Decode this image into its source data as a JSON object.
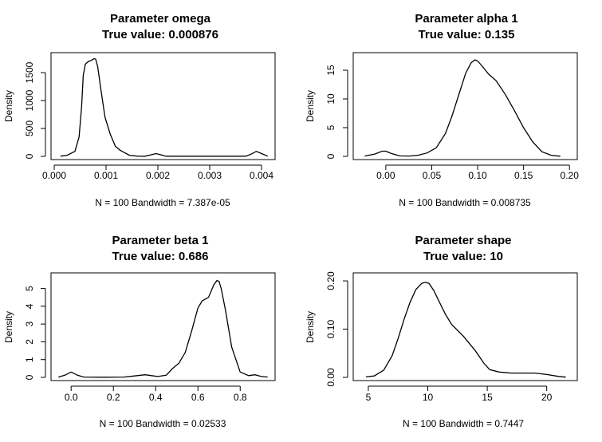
{
  "chart_data": [
    {
      "type": "line",
      "title": "Parameter omega",
      "subtitle": "True value:  0.000876",
      "xlabel": "N = 100   Bandwidth = 7.387e-05",
      "ylabel": "Density",
      "xlim": [
        0.0,
        0.0042
      ],
      "ylim": [
        0,
        1800
      ],
      "xticks": [
        0.0,
        0.001,
        0.002,
        0.003,
        0.004
      ],
      "xticklabels": [
        "0.000",
        "0.001",
        "0.002",
        "0.003",
        "0.004"
      ],
      "yticks": [
        0,
        500,
        1000,
        1500
      ],
      "yticklabels": [
        "0",
        "500",
        "1000",
        "1500"
      ],
      "grid": false,
      "x": [
        0.00012,
        0.00025,
        0.0004,
        0.00048,
        0.00053,
        0.00056,
        0.0006,
        0.00066,
        0.00072,
        0.00077,
        0.0008,
        0.00084,
        0.0009,
        0.00098,
        0.00108,
        0.00118,
        0.00127,
        0.00137,
        0.00145,
        0.0016,
        0.00175,
        0.00188,
        0.00196,
        0.00205,
        0.00215,
        0.0023,
        0.0026,
        0.0029,
        0.0032,
        0.0035,
        0.0037,
        0.0038,
        0.0039,
        0.004,
        0.00412
      ],
      "y": [
        5,
        20,
        90,
        350,
        900,
        1450,
        1650,
        1700,
        1720,
        1750,
        1740,
        1600,
        1200,
        700,
        400,
        180,
        110,
        60,
        20,
        5,
        3,
        30,
        50,
        30,
        5,
        3,
        3,
        3,
        3,
        3,
        5,
        40,
        90,
        50,
        5
      ]
    },
    {
      "type": "line",
      "title": "Parameter alpha 1",
      "subtitle": "True value:  0.135",
      "xlabel": "N = 100   Bandwidth = 0.008735",
      "ylabel": "Density",
      "xlim": [
        -0.032,
        0.205
      ],
      "ylim": [
        0,
        17.5
      ],
      "xticks": [
        0.0,
        0.05,
        0.1,
        0.15,
        0.2
      ],
      "xticklabels": [
        "0.00",
        "0.05",
        "0.10",
        "0.15",
        "0.20"
      ],
      "yticks": [
        0,
        5,
        10,
        15
      ],
      "yticklabels": [
        "0",
        "5",
        "10",
        "15"
      ],
      "grid": false,
      "x": [
        -0.023,
        -0.012,
        -0.004,
        0.0,
        0.006,
        0.015,
        0.025,
        0.035,
        0.045,
        0.055,
        0.065,
        0.072,
        0.08,
        0.087,
        0.093,
        0.097,
        0.1,
        0.105,
        0.112,
        0.12,
        0.13,
        0.14,
        0.15,
        0.16,
        0.17,
        0.18,
        0.19
      ],
      "y": [
        0.05,
        0.4,
        0.9,
        0.9,
        0.5,
        0.08,
        0.05,
        0.2,
        0.6,
        1.5,
        4,
        7,
        11,
        14.5,
        16.3,
        16.8,
        16.6,
        15.7,
        14.3,
        13.2,
        10.8,
        8,
        5,
        2.5,
        0.8,
        0.2,
        0.03
      ]
    },
    {
      "type": "line",
      "title": "Parameter beta 1",
      "subtitle": "True value:  0.686",
      "xlabel": "N = 100   Bandwidth = 0.02533",
      "ylabel": "Density",
      "xlim": [
        -0.08,
        0.95
      ],
      "ylim": [
        0,
        5.7
      ],
      "xticks": [
        0.0,
        0.2,
        0.4,
        0.6,
        0.8
      ],
      "xticklabels": [
        "0.0",
        "0.2",
        "0.4",
        "0.6",
        "0.8"
      ],
      "yticks": [
        0,
        1,
        2,
        3,
        4,
        5
      ],
      "yticklabels": [
        "0",
        "1",
        "2",
        "3",
        "4",
        "5"
      ],
      "grid": false,
      "x": [
        -0.06,
        -0.03,
        0.0,
        0.03,
        0.06,
        0.15,
        0.25,
        0.3,
        0.35,
        0.38,
        0.41,
        0.45,
        0.48,
        0.51,
        0.54,
        0.57,
        0.6,
        0.62,
        0.65,
        0.675,
        0.69,
        0.7,
        0.71,
        0.73,
        0.76,
        0.8,
        0.84,
        0.87,
        0.9,
        0.93
      ],
      "y": [
        0.02,
        0.12,
        0.3,
        0.12,
        0.02,
        0.01,
        0.02,
        0.08,
        0.15,
        0.1,
        0.05,
        0.12,
        0.5,
        0.8,
        1.4,
        2.6,
        3.9,
        4.3,
        4.5,
        5.2,
        5.45,
        5.4,
        5.0,
        3.8,
        1.7,
        0.3,
        0.1,
        0.15,
        0.05,
        0.02
      ]
    },
    {
      "type": "line",
      "title": "Parameter shape",
      "subtitle": "True value:  10",
      "xlabel": "N = 100   Bandwidth = 0.7447",
      "ylabel": "Density",
      "xlim": [
        4.0,
        22.3
      ],
      "ylim": [
        0,
        0.21
      ],
      "xticks": [
        5,
        10,
        15,
        20
      ],
      "xticklabels": [
        "5",
        "10",
        "15",
        "20"
      ],
      "yticks": [
        0.0,
        0.1,
        0.2
      ],
      "yticklabels": [
        "0.00",
        "0.10",
        "0.20"
      ],
      "grid": false,
      "x": [
        4.8,
        5.5,
        6.3,
        7.0,
        7.5,
        8.0,
        8.5,
        9.0,
        9.5,
        9.8,
        10.1,
        10.5,
        11.0,
        11.5,
        12.0,
        13.0,
        14.0,
        14.7,
        15.2,
        16.0,
        17.0,
        18.0,
        19.0,
        20.0,
        21.0,
        21.6
      ],
      "y": [
        0.001,
        0.003,
        0.015,
        0.045,
        0.08,
        0.12,
        0.155,
        0.182,
        0.195,
        0.197,
        0.195,
        0.18,
        0.155,
        0.13,
        0.11,
        0.085,
        0.055,
        0.03,
        0.016,
        0.011,
        0.009,
        0.009,
        0.009,
        0.006,
        0.002,
        0.0005
      ]
    }
  ]
}
